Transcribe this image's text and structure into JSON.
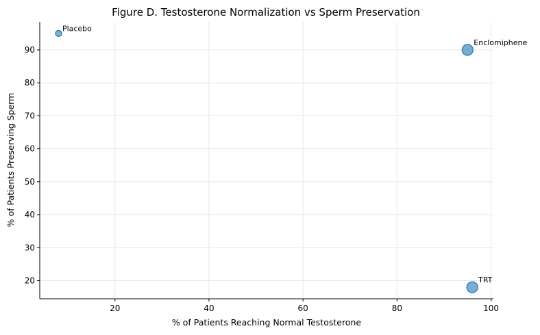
{
  "chart_data": {
    "type": "scatter",
    "title": "Figure D. Testosterone Normalization vs Sperm Preservation",
    "xlabel": "% of Patients Reaching Normal Testosterone",
    "ylabel": "% of Patients Preserving Sperm",
    "xlim": [
      4,
      100.5
    ],
    "ylim": [
      14.5,
      98.5
    ],
    "xticks": [
      20,
      40,
      60,
      80,
      100
    ],
    "yticks": [
      20,
      30,
      40,
      50,
      60,
      70,
      80,
      90
    ],
    "grid": true,
    "marker_color": "#1f77b4",
    "points": [
      {
        "label": "Placebo",
        "x": 8,
        "y": 95,
        "size": "small"
      },
      {
        "label": "Enclomiphene",
        "x": 95,
        "y": 90,
        "size": "large"
      },
      {
        "label": "TRT",
        "x": 96,
        "y": 18,
        "size": "large"
      }
    ]
  }
}
